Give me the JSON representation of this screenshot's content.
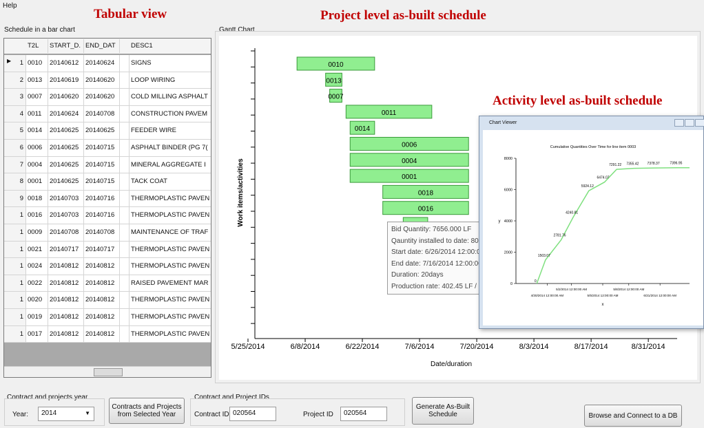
{
  "menu": {
    "help": "Help"
  },
  "annotations": {
    "tabular": "Tabular view",
    "project": "Project level as-built schedule",
    "activity": "Activity level as-built schedule"
  },
  "table": {
    "title": "Schedule in a bar chart",
    "columns": [
      "T2L",
      "START_D.",
      "END_DAT",
      "DESC1"
    ],
    "rows": [
      [
        "1",
        "0010",
        "20140612",
        "20140624",
        "SIGNS"
      ],
      [
        "2",
        "0013",
        "20140619",
        "20140620",
        "LOOP WIRING"
      ],
      [
        "3",
        "0007",
        "20140620",
        "20140620",
        "COLD MILLING ASPHALT"
      ],
      [
        "4",
        "0011",
        "20140624",
        "20140708",
        "CONSTRUCTION PAVEM"
      ],
      [
        "5",
        "0014",
        "20140625",
        "20140625",
        "FEEDER WIRE"
      ],
      [
        "6",
        "0006",
        "20140625",
        "20140715",
        "ASPHALT BINDER (PG 7("
      ],
      [
        "7",
        "0004",
        "20140625",
        "20140715",
        "MINERAL AGGREGATE I"
      ],
      [
        "8",
        "0001",
        "20140625",
        "20140715",
        "TACK COAT"
      ],
      [
        "9",
        "0018",
        "20140703",
        "20140716",
        "THERMOPLASTIC PAVEN"
      ],
      [
        "1",
        "0016",
        "20140703",
        "20140716",
        "THERMOPLASTIC PAVEN"
      ],
      [
        "1",
        "0009",
        "20140708",
        "20140708",
        "MAINTENANCE OF TRAF"
      ],
      [
        "1",
        "0021",
        "20140717",
        "20140717",
        "THERMOPLASTIC PAVEN"
      ],
      [
        "1",
        "0024",
        "20140812",
        "20140812",
        "THERMOPLASTIC PAVEN"
      ],
      [
        "1",
        "0022",
        "20140812",
        "20140812",
        "RAISED PAVEMENT MAR"
      ],
      [
        "1",
        "0020",
        "20140812",
        "20140812",
        "THERMOPLASTIC PAVEN"
      ],
      [
        "1",
        "0019",
        "20140812",
        "20140812",
        "THERMOPLASTIC PAVEN"
      ],
      [
        "1",
        "0017",
        "20140812",
        "20140812",
        "THERMOPLASTIC PAVEN"
      ]
    ]
  },
  "gantt": {
    "title": "Gantt Chart",
    "x_label": "Date/duration",
    "y_label": "Work items/activities",
    "xticks": [
      "5/25/2014",
      "6/8/2014",
      "6/22/2014",
      "7/6/2014",
      "7/20/2014",
      "8/3/2014",
      "8/17/2014",
      "8/31/2014"
    ],
    "bars": [
      {
        "label": "0010",
        "start": "6/6/2014",
        "end": "6/25/2014"
      },
      {
        "label": "0013",
        "start": "6/13/2014",
        "end": "6/17/2014"
      },
      {
        "label": "0007",
        "start": "6/14/2014",
        "end": "6/17/2014"
      },
      {
        "label": "0011",
        "start": "6/18/2014",
        "end": "7/9/2014"
      },
      {
        "label": "0014",
        "start": "6/19/2014",
        "end": "6/25/2014"
      },
      {
        "label": "0006",
        "start": "6/19/2014",
        "end": "7/18/2014"
      },
      {
        "label": "0004",
        "start": "6/19/2014",
        "end": "7/18/2014"
      },
      {
        "label": "0001",
        "start": "6/19/2014",
        "end": "7/18/2014"
      },
      {
        "label": "0018",
        "start": "6/27/2014",
        "end": "7/18/2014"
      },
      {
        "label": "0016",
        "start": "6/27/2014",
        "end": "7/18/2014"
      },
      {
        "label": "0009",
        "start": "7/2/2014",
        "end": "7/8/2014"
      }
    ],
    "tooltip": [
      "Bid Quantity: 7656.000 LF",
      "Qauntity installed to date: 80",
      "Start date: 6/26/2014 12:00:0",
      "End date: 7/16/2014 12:00:00",
      "Duration: 20days",
      "Production rate: 402.45 LF /"
    ]
  },
  "viewer": {
    "window_title": "Chart Viewer",
    "chart_data": {
      "type": "line",
      "title": "Cumulative Quantities Over Time for line item 0003",
      "x_label": "x",
      "y_label": "y",
      "color": "#7fe07f",
      "x": [
        12,
        17,
        26,
        33,
        42,
        51,
        58,
        68,
        80,
        93
      ],
      "values": [
        0,
        1503.07,
        2781.76,
        4240.81,
        5924.12,
        6474.07,
        7291.22,
        7355.42,
        7378.37,
        7396.95
      ],
      "value_labels": [
        "0",
        "1503.07",
        "2781.76",
        "4240.81",
        "5924.12",
        "6474.07",
        "7291.22",
        "7355.42",
        "7378.37",
        "7396.95"
      ],
      "xlim": [
        0,
        100
      ],
      "ylim": [
        0,
        8000
      ],
      "yticks": [
        0,
        2000,
        4000,
        6000,
        8000
      ],
      "xticks": [
        {
          "value": 18,
          "label": "4/30/2014 12:00:00 AM"
        },
        {
          "value": 32,
          "label": "5/2/2014 12:00:00 AM"
        },
        {
          "value": 50,
          "label": "5/5/2014 12:00:00 AM"
        },
        {
          "value": 65,
          "label": "5/8/2014 12:00:00 AM"
        },
        {
          "value": 83,
          "label": "6/21/2014 12:00:00 AM"
        }
      ]
    }
  },
  "controls": {
    "year_group": "Contract and projects year",
    "year_label": "Year:",
    "year_value": "2014",
    "contracts_button": "Contracts and Projects from Selected Year",
    "ids_group": "Contract and Project IDs",
    "contract_label": "Contract ID",
    "contract_value": "020564",
    "project_label": "Project ID",
    "project_value": "020564",
    "generate_button": "Generate As-Built Schedule",
    "browse_button": "Browse and Connect to a DB"
  }
}
